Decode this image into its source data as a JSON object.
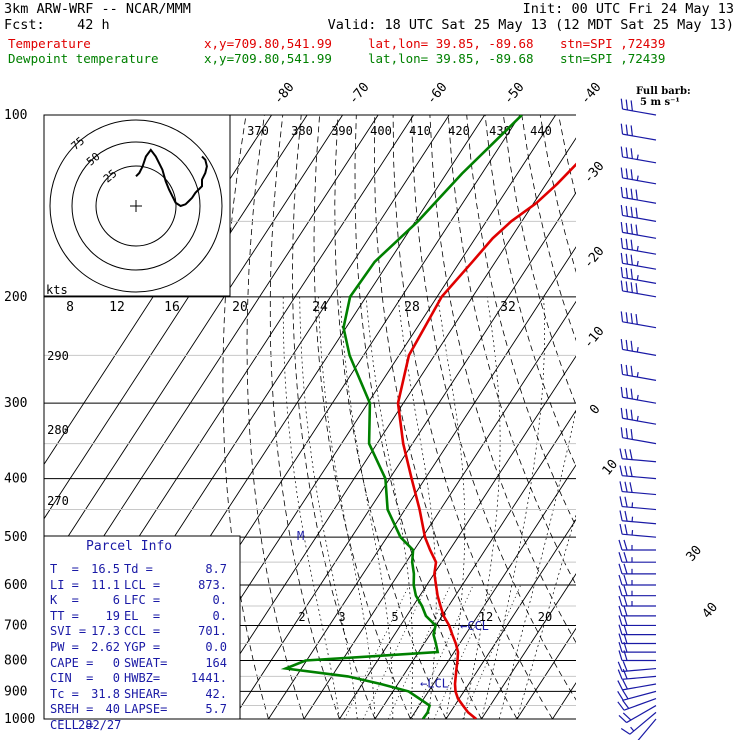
{
  "header": {
    "line1_left": "3km ARW-WRF -- NCAR/MMM",
    "line1_right": "Init: 00 UTC Fri 24 May 13",
    "line2_left": "Fcst:    42 h",
    "line2_right": "Valid: 18 UTC Sat 25 May 13 (12 MDT Sat 25 May 13)",
    "temp_label": "Temperature",
    "temp_xy": "x,y=709.80,541.99",
    "temp_latlon": "lat,lon= 39.85, -89.68",
    "temp_stn": "stn=SPI ,72439",
    "dew_label": "Dewpoint temperature",
    "dew_xy": "x,y=709.80,541.99",
    "dew_latlon": "lat,lon= 39.85, -89.68",
    "dew_stn": "stn=SPI ,72439"
  },
  "colors": {
    "temperature": "#e00000",
    "dewpoint": "#008000",
    "isobar": "#000000",
    "isotherm": "#000000",
    "dry_adiabat": "#000000",
    "moist_adiabat": "#000000",
    "mixing_ratio": "#000000",
    "wind_barb": "#1a1aa6",
    "parcel_text": "#1a1aa6"
  },
  "chart_data": {
    "type": "skew-t",
    "pressure_levels": [
      1000,
      900,
      800,
      700,
      600,
      500,
      400,
      300,
      200,
      100
    ],
    "pressure_tick_labels": [
      "1000",
      "900",
      "800",
      "700",
      "600",
      "500",
      "400",
      "300",
      "200",
      "100"
    ],
    "isotherm_labels": [
      "-80",
      "-70",
      "-60",
      "-50",
      "-40",
      "-30",
      "-20",
      "-10",
      "0",
      "10",
      "30",
      "40"
    ],
    "mixing_ratio_labels": [
      "2",
      "3",
      "5",
      "8",
      "12",
      "20"
    ],
    "potential_temperature_labels": [
      "370",
      "380",
      "390",
      "400",
      "410",
      "420",
      "430",
      "440"
    ],
    "theta_side_labels": [
      "290",
      "280",
      "270"
    ],
    "wind_barb_legend": {
      "title": "Full barb:",
      "value": "5 m s⁻¹"
    },
    "hodograph": {
      "ring_labels": [
        "25",
        "50",
        "75"
      ],
      "speed_axis_label": "kts",
      "speed_axis_ticks": [
        "8",
        "12",
        "16",
        "20",
        "24",
        "28",
        "32"
      ],
      "trace_u": [
        0,
        2,
        4,
        6,
        9,
        12,
        16,
        18,
        20,
        22,
        24,
        27,
        30,
        32,
        34,
        36,
        38,
        40,
        40,
        42,
        43,
        42,
        40
      ],
      "trace_v": [
        -18,
        -20,
        -24,
        -30,
        -34,
        -30,
        -22,
        -15,
        -10,
        -6,
        -2,
        0,
        -1,
        -3,
        -5,
        -8,
        -10,
        -12,
        -16,
        -20,
        -24,
        -28,
        -30
      ]
    },
    "temperature": {
      "pressure": [
        1000,
        975,
        950,
        925,
        900,
        875,
        850,
        825,
        800,
        775,
        750,
        725,
        700,
        675,
        650,
        625,
        600,
        575,
        550,
        525,
        500,
        450,
        400,
        350,
        300,
        250,
        225,
        200,
        175,
        160,
        150,
        140,
        130,
        120,
        110,
        100
      ],
      "values": [
        28.5,
        25.0,
        22.3,
        19.6,
        17.6,
        16.1,
        14.9,
        13.7,
        12.5,
        11.1,
        8.9,
        6.3,
        3.7,
        0.4,
        -2.3,
        -5.0,
        -7.4,
        -9.9,
        -11.6,
        -15.5,
        -19.3,
        -25.9,
        -33.8,
        -42.6,
        -51.5,
        -57.2,
        -57.9,
        -58.7,
        -56.5,
        -55.1,
        -53.0,
        -49.3,
        -46.9,
        -45.0,
        -44.3,
        -42.5
      ]
    },
    "dewpoint": {
      "pressure": [
        1000,
        975,
        950,
        925,
        900,
        875,
        850,
        825,
        800,
        775,
        750,
        725,
        700,
        675,
        650,
        625,
        600,
        575,
        550,
        525,
        500,
        450,
        400,
        350,
        300,
        250,
        225,
        200,
        175,
        150,
        125,
        100
      ],
      "values": [
        13.5,
        13.6,
        12.9,
        8.7,
        4.4,
        -4.8,
        -15.5,
        -34.4,
        -30.3,
        5.4,
        3.3,
        1.0,
        -0.1,
        -4.6,
        -7.5,
        -11.1,
        -13.7,
        -15.7,
        -18.3,
        -20.3,
        -26.2,
        -34.9,
        -41.2,
        -52.2,
        -59.4,
        -73.9,
        -80.7,
        -84.5,
        -84.0,
        -79.3,
        -75.6,
        -69.5
      ]
    },
    "lcl_pressure": 873,
    "ccl_pressure": 701,
    "lcl_label": "LCL",
    "ccl_label": "CCL",
    "mark_label": "M",
    "wind_barbs": {
      "pressure": [
        1000,
        975,
        950,
        925,
        900,
        875,
        850,
        825,
        800,
        775,
        750,
        725,
        700,
        675,
        650,
        625,
        600,
        575,
        550,
        525,
        500,
        475,
        450,
        425,
        400,
        375,
        350,
        325,
        300,
        275,
        250,
        225,
        200,
        190,
        180,
        170,
        160,
        150,
        140,
        130,
        120,
        110,
        100
      ],
      "speed_ms": [
        5,
        8,
        10,
        10,
        12,
        12,
        12,
        12,
        12,
        12,
        12,
        12,
        12,
        12,
        14,
        14,
        14,
        14,
        14,
        14,
        14,
        14,
        14,
        16,
        16,
        16,
        16,
        18,
        18,
        18,
        18,
        20,
        20,
        18,
        18,
        18,
        20,
        20,
        20,
        18,
        18,
        16,
        16
      ],
      "direction_deg": [
        220,
        230,
        240,
        250,
        255,
        260,
        265,
        265,
        270,
        270,
        270,
        270,
        270,
        270,
        270,
        270,
        270,
        270,
        270,
        270,
        275,
        275,
        275,
        275,
        275,
        275,
        280,
        280,
        280,
        280,
        280,
        280,
        280,
        280,
        280,
        280,
        280,
        280,
        280,
        280,
        280,
        280,
        280
      ]
    }
  },
  "parcel_info": {
    "title": "Parcel Info",
    "rows": [
      [
        "T  =",
        "16.5",
        "Td =",
        "8.7"
      ],
      [
        "LI =",
        "11.1",
        "LCL =",
        "873."
      ],
      [
        "K  =",
        "6",
        "LFC =",
        "0."
      ],
      [
        "TT =",
        "19",
        "EL  =",
        "0."
      ],
      [
        "SVI =",
        "17.3",
        "CCL =",
        "701."
      ],
      [
        "PW =",
        "2.62",
        "YGP =",
        "0.0"
      ],
      [
        "CAPE =",
        "0",
        "SWEAT=",
        "164"
      ],
      [
        "CIN  =",
        "0",
        "HWBZ=",
        "1441."
      ],
      [
        "Tc =",
        "31.8",
        "SHEAR=",
        "42."
      ],
      [
        "SREH =",
        "40",
        "LAPSE=",
        "5.7"
      ],
      [
        "CELL =",
        "282/27",
        "",
        ""
      ]
    ]
  }
}
